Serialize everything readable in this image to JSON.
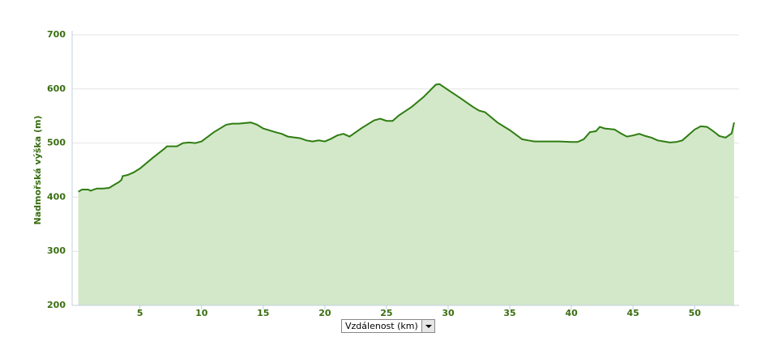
{
  "chart_data": {
    "type": "area",
    "y_label": "Nadmořská výška (m)",
    "x_label": "Vzdálenost (km)",
    "line_color": "#2f7d12",
    "fill_color": "#d3e8c9",
    "grid": true,
    "xlim": [
      -0.5,
      53.6
    ],
    "ylim": [
      200,
      700
    ],
    "xticks": [
      5,
      10,
      15,
      20,
      25,
      30,
      35,
      40,
      45,
      50
    ],
    "yticks": [
      200,
      300,
      400,
      500,
      600,
      700
    ],
    "x": [
      0,
      0.3,
      0.8,
      1,
      1.5,
      2,
      2.5,
      3,
      3.3,
      3.5,
      3.6,
      4,
      4.5,
      5,
      6,
      7,
      7.2,
      8,
      8.5,
      9,
      9.5,
      10,
      11,
      12,
      12.5,
      13,
      14,
      14.5,
      15,
      16,
      16.5,
      17,
      18,
      18.5,
      19,
      19.5,
      20,
      20.5,
      21,
      21.5,
      22,
      23,
      24,
      24.5,
      25,
      25.5,
      26,
      27,
      28,
      29,
      29.3,
      30,
      31,
      32,
      32.5,
      33,
      34,
      35,
      36,
      36.5,
      37,
      38,
      39,
      40,
      40.5,
      41,
      41.5,
      42,
      42.3,
      42.7,
      43.5,
      44,
      44.5,
      45,
      45.5,
      46,
      46.5,
      47,
      47.5,
      48,
      48.5,
      49,
      50,
      50.5,
      51,
      51.5,
      52,
      52.5,
      53,
      53.2
    ],
    "values": [
      410,
      414,
      414,
      412,
      416,
      416,
      417,
      424,
      428,
      432,
      439,
      441,
      446,
      453,
      472,
      490,
      494,
      494,
      500,
      501,
      500,
      503,
      520,
      534,
      536,
      536,
      538,
      534,
      527,
      520,
      517,
      512,
      509,
      505,
      503,
      505,
      503,
      508,
      514,
      517,
      512,
      528,
      542,
      545,
      541,
      541,
      551,
      566,
      585,
      608,
      609,
      598,
      583,
      567,
      560,
      557,
      538,
      524,
      507,
      505,
      503,
      503,
      503,
      502,
      502,
      507,
      520,
      522,
      530,
      527,
      525,
      518,
      512,
      514,
      517,
      513,
      510,
      505,
      503,
      501,
      502,
      505,
      525,
      531,
      530,
      522,
      513,
      510,
      518,
      538
    ]
  }
}
